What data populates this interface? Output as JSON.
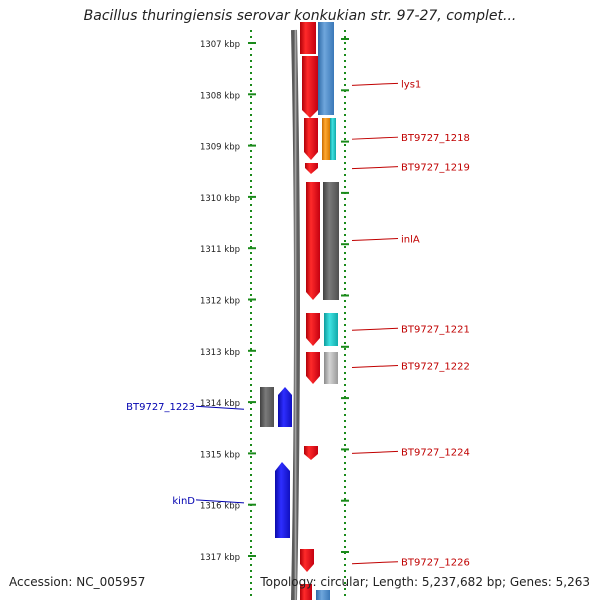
{
  "title": "Bacillus thuringiensis serovar konkukian str. 97-27, complet...",
  "accession": "Accession: NC_005957",
  "topology": "Topology: circular; Length: 5,237,682 bp; Genes: 5,263",
  "ruler": [
    "1307 kbp",
    "1308 kbp",
    "1309 kbp",
    "1310 kbp",
    "1311 kbp",
    "1312 kbp",
    "1313 kbp",
    "1314 kbp",
    "1315 kbp",
    "1316 kbp",
    "1317 kbp"
  ],
  "genes_right": [
    {
      "label": "lys1",
      "start_kbp": 1307.3,
      "end_kbp": 1308.35
    },
    {
      "label": "BT9727_1218",
      "start_kbp": 1308.45,
      "end_kbp": 1309.3
    },
    {
      "label": "BT9727_1219",
      "start_kbp": 1309.35,
      "end_kbp": 1309.55
    },
    {
      "label": "inlA",
      "start_kbp": 1309.7,
      "end_kbp": 1312.0
    },
    {
      "label": "BT9727_1221",
      "start_kbp": 1312.25,
      "end_kbp": 1312.95
    },
    {
      "label": "BT9727_1222",
      "start_kbp": 1313.0,
      "end_kbp": 1313.65
    },
    {
      "label": "BT9727_1224",
      "start_kbp": 1314.85,
      "end_kbp": 1315.15
    },
    {
      "label": "BT9727_1226",
      "start_kbp": 1316.9,
      "end_kbp": 1317.4
    }
  ],
  "genes_left": [
    {
      "label": "BT9727_1223",
      "start_kbp": 1313.7,
      "end_kbp": 1314.5
    },
    {
      "label": "kinD",
      "start_kbp": 1315.15,
      "end_kbp": 1316.7
    }
  ],
  "colors": {
    "forward_gene": "#e8141b",
    "reverse_gene": "#1b1be0",
    "label_forward": "#c00000",
    "label_reverse": "#0000b0",
    "tick": "#1a8a1a",
    "backbone": "#7a7a7a",
    "cog_blue": "#4a86c0",
    "cog_orange": "#f08a0c",
    "cog_cyan": "#19c6c6",
    "cog_gray": "#606060",
    "cog_lightgray": "#b0b0b0"
  }
}
